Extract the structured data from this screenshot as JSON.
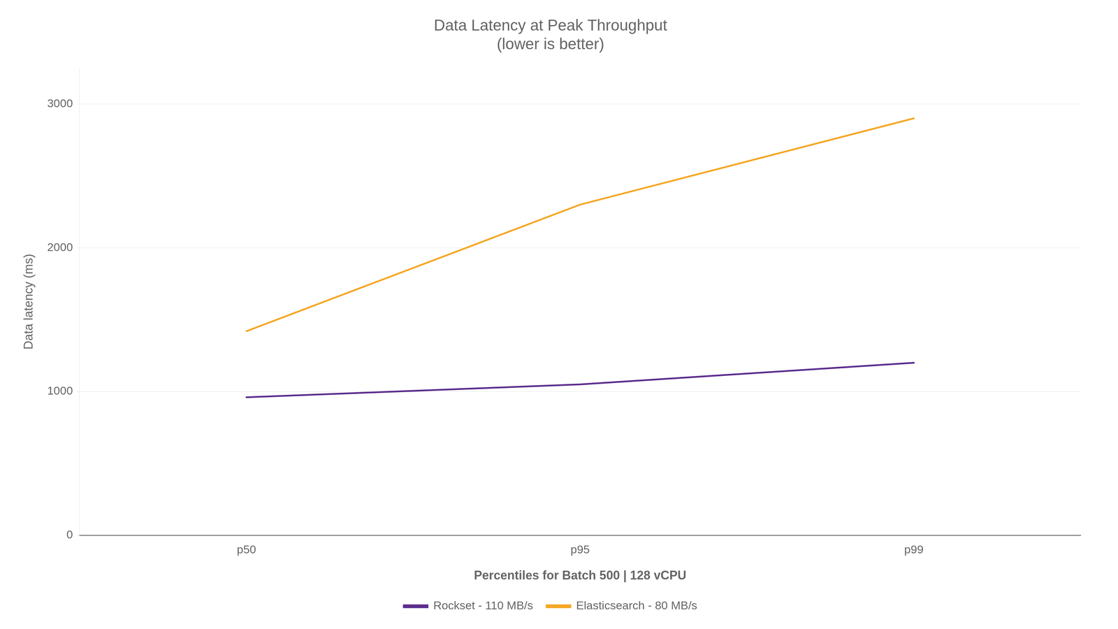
{
  "chart_data": {
    "type": "line",
    "title": "Data Latency at Peak Throughput\n(lower is better)",
    "xlabel": "Percentiles for Batch 500 | 128 vCPU",
    "ylabel": "Data latency (ms)",
    "categories": [
      "p50",
      "p95",
      "p99"
    ],
    "series": [
      {
        "name": "Rockset - 110 MB/s",
        "color": "#5b2d8e",
        "values": [
          960,
          1050,
          1200
        ]
      },
      {
        "name": "Elasticsearch - 80 MB/s",
        "color": "#f5a623",
        "values": [
          1420,
          2300,
          2900
        ]
      }
    ],
    "ylim": [
      0,
      3250
    ],
    "yticks": [
      0,
      1000,
      2000,
      3000
    ],
    "grid": true,
    "legend": "bottom"
  }
}
